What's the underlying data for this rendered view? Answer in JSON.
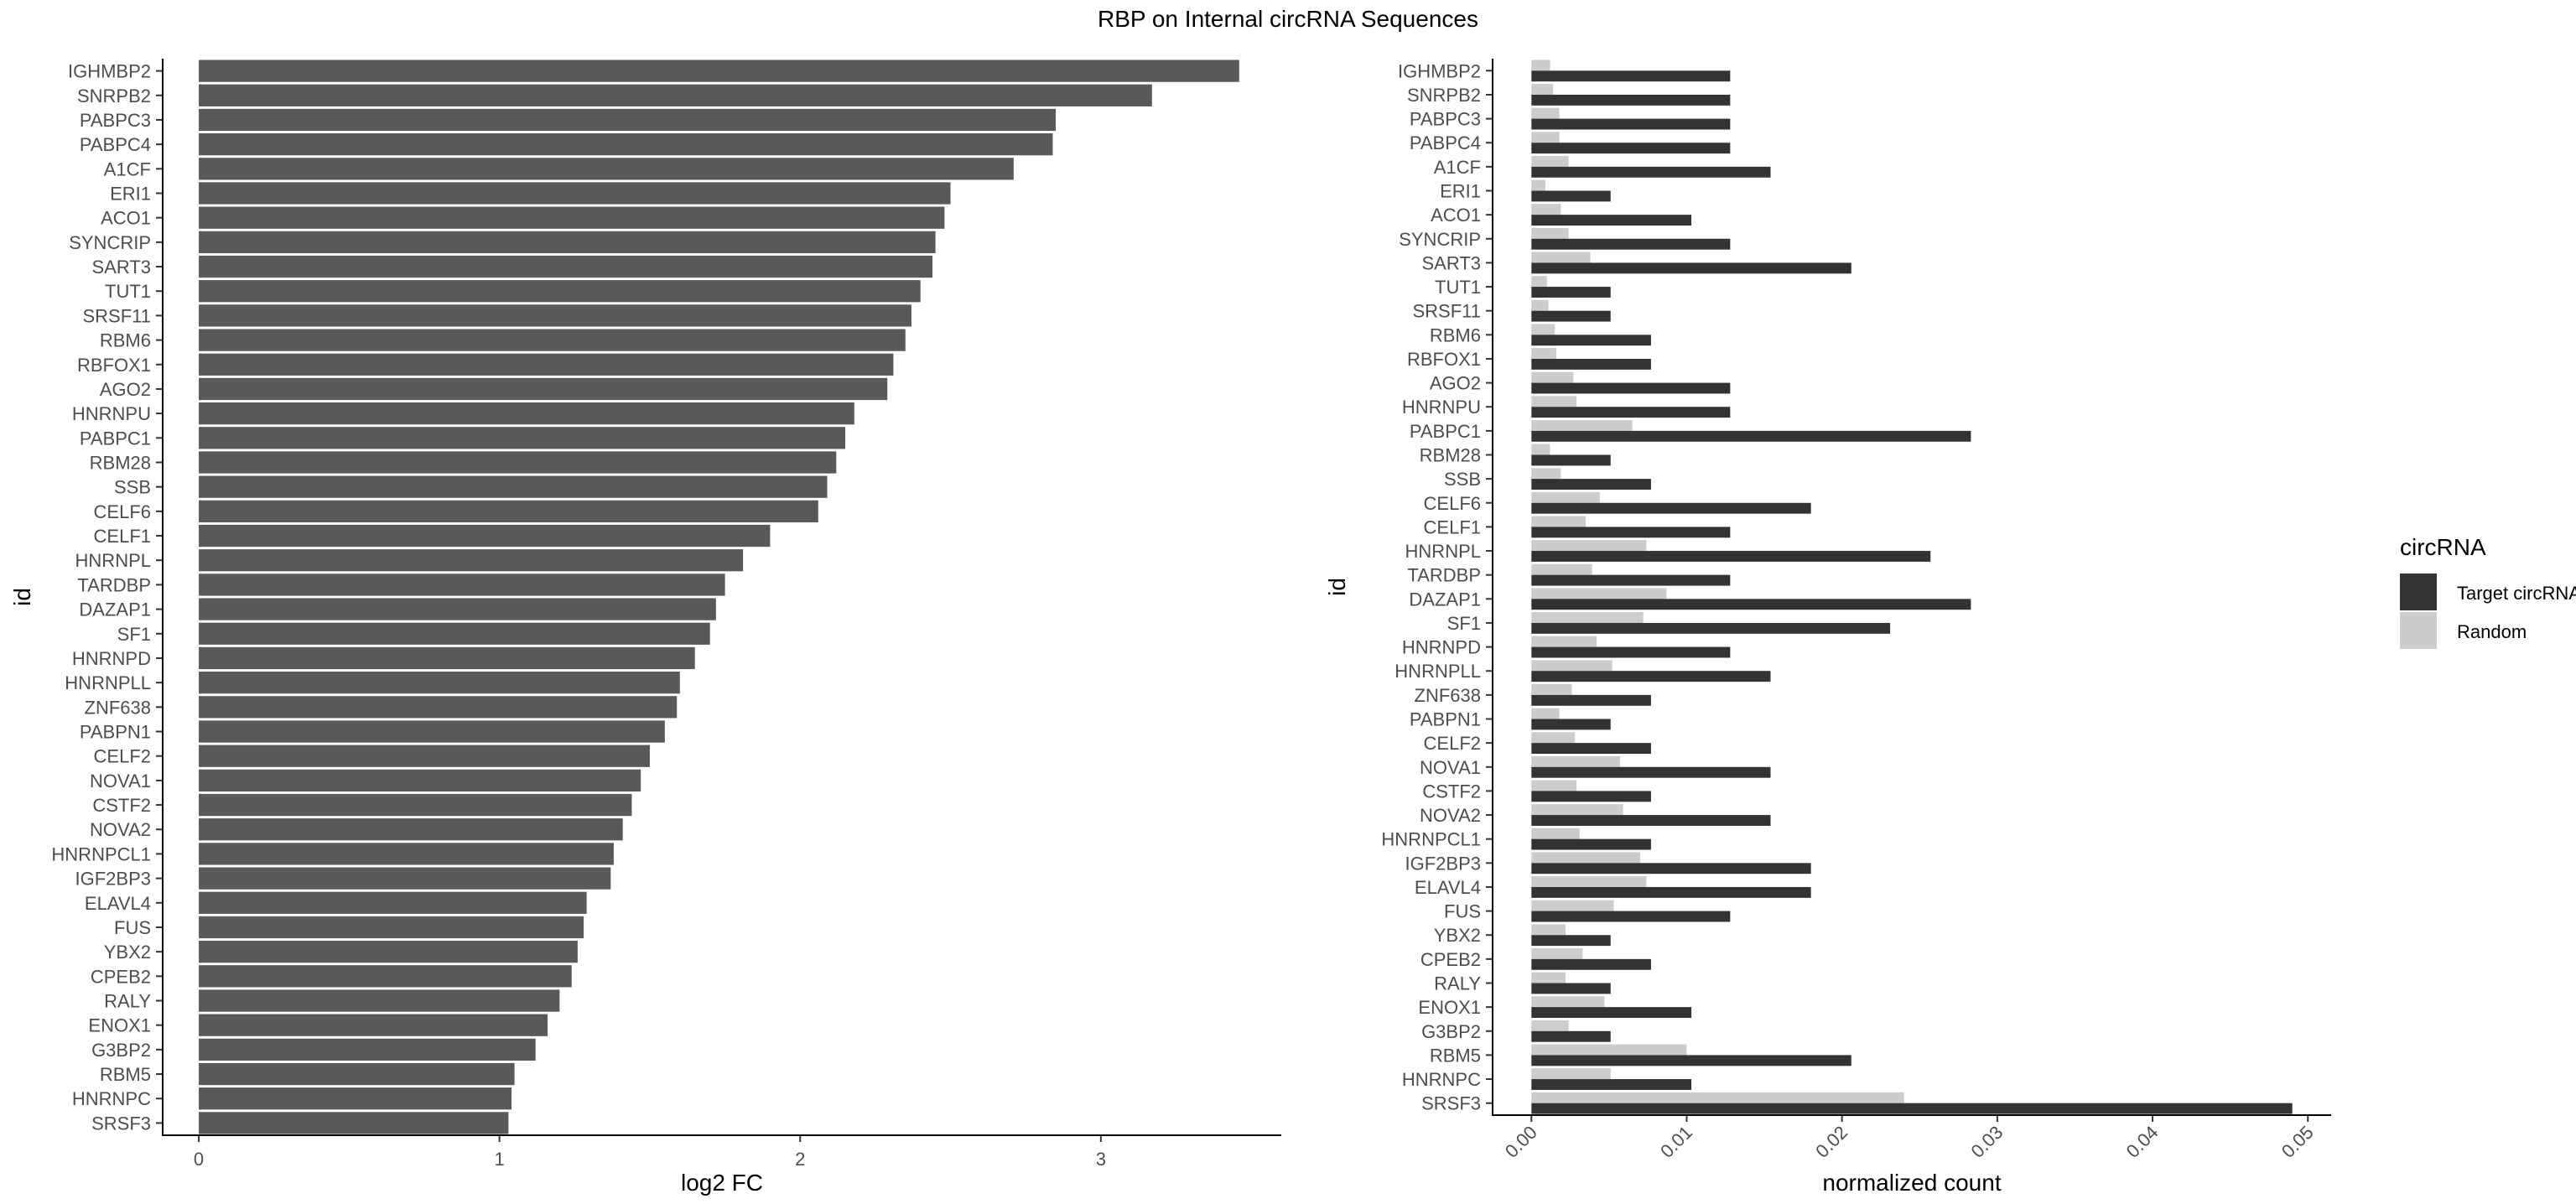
{
  "title": "RBP on Internal circRNA Sequences",
  "colors": {
    "left_bar": "#595959",
    "target": "#333333",
    "random": "#cccccc",
    "axis": "#000000",
    "tick_label": "#4d4d4d"
  },
  "legend": {
    "title": "circRNA",
    "items": [
      {
        "label": "Target circRNAs",
        "color": "#333333"
      },
      {
        "label": "Random",
        "color": "#cccccc"
      }
    ]
  },
  "chart_data": [
    {
      "type": "bar",
      "orientation": "horizontal",
      "xlabel": "log2 FC",
      "ylabel": "id",
      "xlim": [
        -0.12,
        3.6
      ],
      "xticks": [
        0,
        1,
        2,
        3
      ],
      "grid": false,
      "categories": [
        "IGHMBP2",
        "SNRPB2",
        "PABPC3",
        "PABPC4",
        "A1CF",
        "ERI1",
        "ACO1",
        "SYNCRIP",
        "SART3",
        "TUT1",
        "SRSF11",
        "RBM6",
        "RBFOX1",
        "AGO2",
        "HNRNPU",
        "PABPC1",
        "RBM28",
        "SSB",
        "CELF6",
        "CELF1",
        "HNRNPL",
        "TARDBP",
        "DAZAP1",
        "SF1",
        "HNRNPD",
        "HNRNPLL",
        "ZNF638",
        "PABPN1",
        "CELF2",
        "NOVA1",
        "CSTF2",
        "NOVA2",
        "HNRNPCL1",
        "IGF2BP3",
        "ELAVL4",
        "FUS",
        "YBX2",
        "CPEB2",
        "RALY",
        "ENOX1",
        "G3BP2",
        "RBM5",
        "HNRNPC",
        "SRSF3"
      ],
      "values": [
        3.46,
        3.17,
        2.85,
        2.84,
        2.71,
        2.5,
        2.48,
        2.45,
        2.44,
        2.4,
        2.37,
        2.35,
        2.31,
        2.29,
        2.18,
        2.15,
        2.12,
        2.09,
        2.06,
        1.9,
        1.81,
        1.75,
        1.72,
        1.7,
        1.65,
        1.6,
        1.59,
        1.55,
        1.5,
        1.47,
        1.44,
        1.41,
        1.38,
        1.37,
        1.29,
        1.28,
        1.26,
        1.24,
        1.2,
        1.16,
        1.12,
        1.05,
        1.04,
        1.03
      ]
    },
    {
      "type": "bar",
      "orientation": "horizontal",
      "xlabel": "normalized count",
      "ylabel": "id",
      "xlim": [
        -0.0025,
        0.0515
      ],
      "xticks": [
        0.0,
        0.01,
        0.02,
        0.03,
        0.04,
        0.05
      ],
      "xtick_labels": [
        "0.00",
        "0.01",
        "0.02",
        "0.03",
        "0.04",
        "0.05"
      ],
      "grid": false,
      "legend_position": "right",
      "categories": [
        "IGHMBP2",
        "SNRPB2",
        "PABPC3",
        "PABPC4",
        "A1CF",
        "ERI1",
        "ACO1",
        "SYNCRIP",
        "SART3",
        "TUT1",
        "SRSF11",
        "RBM6",
        "RBFOX1",
        "AGO2",
        "HNRNPU",
        "PABPC1",
        "RBM28",
        "SSB",
        "CELF6",
        "CELF1",
        "HNRNPL",
        "TARDBP",
        "DAZAP1",
        "SF1",
        "HNRNPD",
        "HNRNPLL",
        "ZNF638",
        "PABPN1",
        "CELF2",
        "NOVA1",
        "CSTF2",
        "NOVA2",
        "HNRNPCL1",
        "IGF2BP3",
        "ELAVL4",
        "FUS",
        "YBX2",
        "CPEB2",
        "RALY",
        "ENOX1",
        "G3BP2",
        "RBM5",
        "HNRNPC",
        "SRSF3"
      ],
      "series": [
        {
          "name": "Target circRNAs",
          "values": [
            0.0128,
            0.0128,
            0.0128,
            0.0128,
            0.0154,
            0.0051,
            0.0103,
            0.0128,
            0.0206,
            0.0051,
            0.0051,
            0.0077,
            0.0077,
            0.0128,
            0.0128,
            0.0283,
            0.0051,
            0.0077,
            0.018,
            0.0128,
            0.0257,
            0.0128,
            0.0283,
            0.0231,
            0.0128,
            0.0154,
            0.0077,
            0.0051,
            0.0077,
            0.0154,
            0.0077,
            0.0154,
            0.0077,
            0.018,
            0.018,
            0.0128,
            0.0051,
            0.0077,
            0.0051,
            0.0103,
            0.0051,
            0.0206,
            0.0103,
            0.049
          ]
        },
        {
          "name": "Random",
          "values": [
            0.0012,
            0.0014,
            0.0018,
            0.0018,
            0.0024,
            0.0009,
            0.0019,
            0.0024,
            0.0038,
            0.001,
            0.0011,
            0.0015,
            0.0016,
            0.0027,
            0.0029,
            0.0065,
            0.0012,
            0.0019,
            0.0044,
            0.0035,
            0.0074,
            0.0039,
            0.0087,
            0.0072,
            0.0042,
            0.0052,
            0.0026,
            0.0018,
            0.0028,
            0.0057,
            0.0029,
            0.0059,
            0.0031,
            0.007,
            0.0074,
            0.0053,
            0.0022,
            0.0033,
            0.0022,
            0.0047,
            0.0024,
            0.01,
            0.0051,
            0.024
          ]
        }
      ]
    }
  ]
}
